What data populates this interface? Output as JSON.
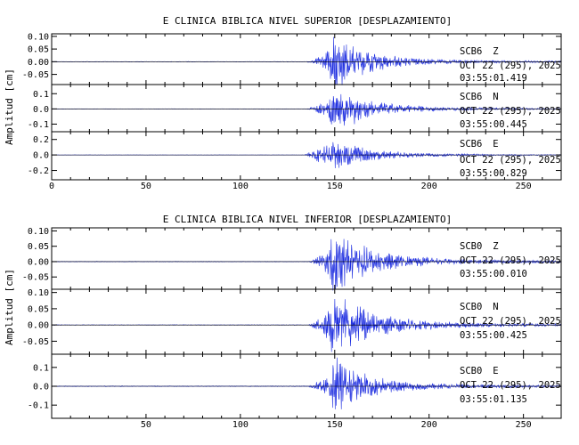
{
  "chart_data": [
    {
      "type": "line",
      "title": "E CLINICA BIBLICA NIVEL SUPERIOR [DESPLAZAMIENTO]",
      "ylabel": "Amplitud [cm]",
      "xlim": [
        0,
        270
      ],
      "x_ticks": [
        "0",
        "50",
        "100",
        "150",
        "200",
        "250"
      ],
      "trace_color": "#1f2fe0",
      "panels": [
        {
          "station": "SCB6",
          "component": "Z",
          "date": "OCT 22 (295), 2025",
          "time": "03:55:01.419",
          "ylim": [
            -0.09,
            0.11
          ],
          "yticks": [
            "0.10",
            "0.05",
            "0.00",
            "-0.05"
          ],
          "ytick_values": [
            0.1,
            0.05,
            0.0,
            -0.05
          ],
          "envelope": [
            [
              0,
              0.001
            ],
            [
              135,
              0.001
            ],
            [
              138,
              0.006
            ],
            [
              142,
              0.02
            ],
            [
              146,
              0.04
            ],
            [
              150,
              0.12
            ],
            [
              155,
              0.07
            ],
            [
              160,
              0.06
            ],
            [
              170,
              0.035
            ],
            [
              185,
              0.018
            ],
            [
              210,
              0.008
            ],
            [
              240,
              0.004
            ],
            [
              270,
              0.003
            ]
          ]
        },
        {
          "station": "SCB6",
          "component": "N",
          "date": "OCT 22 (295), 2025",
          "time": "03:55:00.445",
          "ylim": [
            -0.15,
            0.16
          ],
          "yticks": [
            "0.1",
            "0.0",
            "-0.1"
          ],
          "ytick_values": [
            0.1,
            0.0,
            -0.1
          ],
          "envelope": [
            [
              0,
              0.001
            ],
            [
              135,
              0.001
            ],
            [
              138,
              0.012
            ],
            [
              142,
              0.035
            ],
            [
              146,
              0.07
            ],
            [
              150,
              0.16
            ],
            [
              155,
              0.11
            ],
            [
              160,
              0.09
            ],
            [
              170,
              0.05
            ],
            [
              185,
              0.025
            ],
            [
              210,
              0.012
            ],
            [
              240,
              0.006
            ],
            [
              270,
              0.004
            ]
          ]
        },
        {
          "station": "SCB6",
          "component": "E",
          "date": "OCT 22 (295), 2025",
          "time": "03:55:00.829",
          "ylim": [
            -0.32,
            0.3
          ],
          "yticks": [
            "0.2",
            "0.0",
            "-0.2"
          ],
          "ytick_values": [
            0.2,
            0.0,
            -0.2
          ],
          "envelope": [
            [
              0,
              0.002
            ],
            [
              134,
              0.002
            ],
            [
              137,
              0.05
            ],
            [
              141,
              0.09
            ],
            [
              146,
              0.12
            ],
            [
              150,
              0.22
            ],
            [
              155,
              0.16
            ],
            [
              160,
              0.12
            ],
            [
              170,
              0.07
            ],
            [
              185,
              0.035
            ],
            [
              210,
              0.016
            ],
            [
              240,
              0.008
            ],
            [
              270,
              0.006
            ]
          ]
        }
      ]
    },
    {
      "type": "line",
      "title": "E CLINICA BIBLICA NIVEL INFERIOR [DESPLAZAMIENTO]",
      "ylabel": "Amplitud [cm]",
      "xlim": [
        0,
        270
      ],
      "x_ticks": [
        "50",
        "100",
        "150",
        "200",
        "250"
      ],
      "trace_color": "#1f2fe0",
      "panels": [
        {
          "station": "SCB0",
          "component": "Z",
          "date": "OCT 22 (295), 2025",
          "time": "03:55:00.010",
          "ylim": [
            -0.09,
            0.11
          ],
          "yticks": [
            "0.10",
            "0.05",
            "0.00",
            "-0.05"
          ],
          "ytick_values": [
            0.1,
            0.05,
            0.0,
            -0.05
          ],
          "envelope": [
            [
              0,
              0.001
            ],
            [
              136,
              0.001
            ],
            [
              139,
              0.008
            ],
            [
              143,
              0.025
            ],
            [
              147,
              0.045
            ],
            [
              150,
              0.12
            ],
            [
              155,
              0.075
            ],
            [
              160,
              0.065
            ],
            [
              170,
              0.04
            ],
            [
              185,
              0.02
            ],
            [
              210,
              0.009
            ],
            [
              240,
              0.005
            ],
            [
              270,
              0.004
            ]
          ]
        },
        {
          "station": "SCB0",
          "component": "N",
          "date": "OCT 22 (295), 2025",
          "time": "03:55:00.425",
          "ylim": [
            -0.09,
            0.11
          ],
          "yticks": [
            "0.10",
            "0.05",
            "0.00",
            "-0.05"
          ],
          "ytick_values": [
            0.1,
            0.05,
            0.0,
            -0.05
          ],
          "envelope": [
            [
              0,
              0.001
            ],
            [
              136,
              0.001
            ],
            [
              139,
              0.01
            ],
            [
              143,
              0.03
            ],
            [
              147,
              0.05
            ],
            [
              150,
              0.1
            ],
            [
              155,
              0.08
            ],
            [
              160,
              0.065
            ],
            [
              170,
              0.04
            ],
            [
              185,
              0.02
            ],
            [
              210,
              0.009
            ],
            [
              240,
              0.005
            ],
            [
              270,
              0.004
            ]
          ]
        },
        {
          "station": "SCB0",
          "component": "E",
          "date": "OCT 22 (295), 2025",
          "time": "03:55:01.135",
          "ylim": [
            -0.17,
            0.17
          ],
          "yticks": [
            "0.1",
            "0.0",
            "-0.1"
          ],
          "ytick_values": [
            0.1,
            0.0,
            -0.1
          ],
          "envelope": [
            [
              0,
              0.002
            ],
            [
              136,
              0.002
            ],
            [
              139,
              0.015
            ],
            [
              143,
              0.04
            ],
            [
              147,
              0.07
            ],
            [
              150,
              0.16
            ],
            [
              155,
              0.1
            ],
            [
              160,
              0.08
            ],
            [
              170,
              0.05
            ],
            [
              185,
              0.025
            ],
            [
              210,
              0.012
            ],
            [
              240,
              0.007
            ],
            [
              270,
              0.005
            ]
          ]
        }
      ]
    }
  ]
}
